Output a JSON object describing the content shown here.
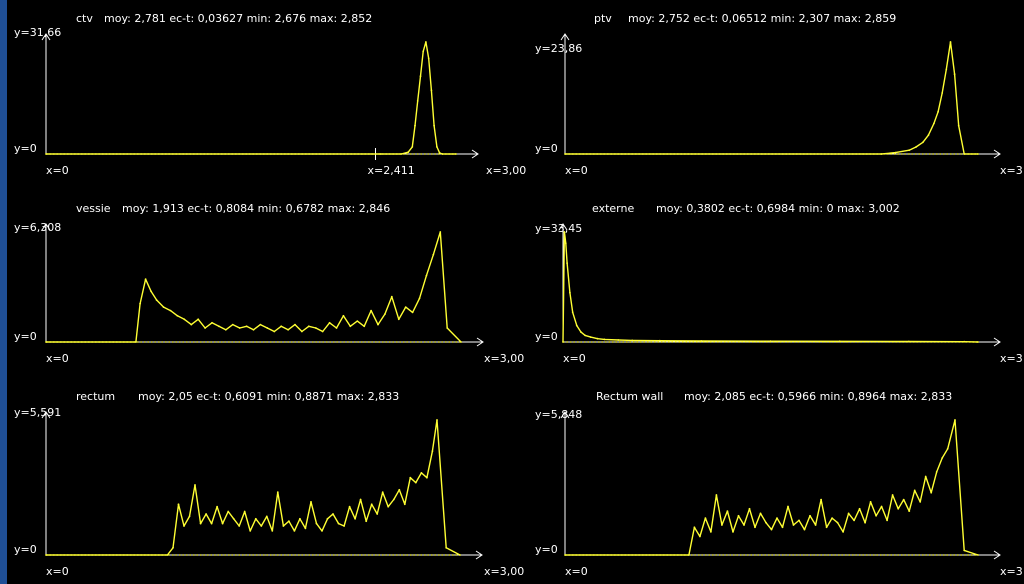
{
  "colors": {
    "background": "#000000",
    "axis": "#ffffff",
    "series": "#ffff33",
    "text": "#ffffff",
    "left_strip": "#1f4f96"
  },
  "chart_data": [
    {
      "type": "line",
      "name": "ctv",
      "title": "ctv",
      "stats": "moy: 2,781 ec-t: 0,03627 min: 2,676 max: 2,852",
      "y_max_label": "y=31,66",
      "y_min_label": "y=0",
      "x_min_label": "x=0",
      "x_max_label": "x=3,00",
      "extra_x_label": "x=2,411",
      "extra_x_value": 2.411,
      "xlim": [
        0,
        3.0
      ],
      "ylim": [
        0,
        31.66
      ],
      "grid": false,
      "x": [
        0,
        2.45,
        2.6,
        2.65,
        2.68,
        2.7,
        2.72,
        2.74,
        2.76,
        2.78,
        2.8,
        2.82,
        2.84,
        2.86,
        2.88,
        2.9,
        3.0
      ],
      "y": [
        0,
        0,
        0,
        0.5,
        2,
        8,
        15,
        22,
        29,
        31.66,
        27,
        18,
        8,
        2,
        0.3,
        0,
        0
      ]
    },
    {
      "type": "line",
      "name": "ptv",
      "title": "ptv",
      "stats": "moy: 2,752 ec-t: 0,06512 min: 2,307 max: 2,859",
      "y_max_label": "y=23,86",
      "y_min_label": "y=0",
      "x_min_label": "x=0",
      "x_max_label": "x=3",
      "xlim": [
        0,
        3.0
      ],
      "ylim": [
        0,
        23.86
      ],
      "grid": false,
      "x": [
        0,
        2.3,
        2.4,
        2.5,
        2.55,
        2.6,
        2.64,
        2.68,
        2.71,
        2.74,
        2.77,
        2.8,
        2.83,
        2.86,
        2.9,
        3.0
      ],
      "y": [
        0,
        0,
        0.3,
        0.8,
        1.5,
        2.5,
        4,
        6.5,
        9,
        13,
        18,
        23.86,
        17,
        6,
        0,
        0
      ]
    },
    {
      "type": "line",
      "name": "vessie",
      "title": "vessie",
      "stats": "moy: 1,913 ec-t: 0,8084 min: 0,6782 max: 2,846",
      "y_max_label": "y=6,308",
      "y_min_label": "y=0",
      "x_min_label": "x=0",
      "x_max_label": "x=3,00",
      "xlim": [
        0,
        3.0
      ],
      "ylim": [
        0,
        6.308
      ],
      "grid": false,
      "x": [
        0,
        0.65,
        0.68,
        0.72,
        0.76,
        0.8,
        0.85,
        0.9,
        0.95,
        1.0,
        1.05,
        1.1,
        1.15,
        1.2,
        1.25,
        1.3,
        1.35,
        1.4,
        1.45,
        1.5,
        1.55,
        1.6,
        1.65,
        1.7,
        1.75,
        1.8,
        1.85,
        1.9,
        1.95,
        2.0,
        2.05,
        2.1,
        2.15,
        2.2,
        2.25,
        2.3,
        2.35,
        2.4,
        2.45,
        2.5,
        2.55,
        2.6,
        2.65,
        2.7,
        2.75,
        2.8,
        2.85,
        2.9,
        3.0
      ],
      "y": [
        0,
        0,
        2.2,
        3.6,
        2.9,
        2.4,
        2.0,
        1.8,
        1.5,
        1.3,
        1.0,
        1.3,
        0.8,
        1.1,
        0.9,
        0.7,
        1.0,
        0.8,
        0.9,
        0.7,
        1.0,
        0.8,
        0.6,
        0.9,
        0.7,
        1.0,
        0.6,
        0.9,
        0.8,
        0.6,
        1.1,
        0.8,
        1.5,
        0.9,
        1.2,
        0.9,
        1.8,
        1.0,
        1.6,
        2.6,
        1.3,
        2.0,
        1.7,
        2.5,
        3.8,
        5.0,
        6.308,
        0.8,
        0
      ]
    },
    {
      "type": "line",
      "name": "externe",
      "title": "externe",
      "stats": "moy: 0,3802 ec-t: 0,6984 min: 0 max: 3,002",
      "y_max_label": "y=33,45",
      "y_min_label": "y=0",
      "x_min_label": "x=0",
      "x_max_label": "x=3",
      "xlim": [
        0,
        3.0
      ],
      "ylim": [
        0,
        33.45
      ],
      "grid": false,
      "x": [
        0,
        0.01,
        0.02,
        0.03,
        0.05,
        0.07,
        0.1,
        0.13,
        0.16,
        0.2,
        0.25,
        0.3,
        0.4,
        0.5,
        0.7,
        1.0,
        1.5,
        2.0,
        2.5,
        2.9,
        3.0
      ],
      "y": [
        0,
        33.45,
        30,
        24,
        15,
        9,
        5,
        3,
        2,
        1.5,
        1,
        0.8,
        0.6,
        0.5,
        0.4,
        0.3,
        0.25,
        0.2,
        0.15,
        0.1,
        0
      ]
    },
    {
      "type": "line",
      "name": "rectum",
      "title": "rectum",
      "stats": "moy: 2,05 ec-t: 0,6091 min: 0,8871 max: 2,833",
      "y_max_label": "y=5,591",
      "y_min_label": "y=0",
      "x_min_label": "x=0",
      "x_max_label": "x=3,00",
      "xlim": [
        0,
        3.0
      ],
      "ylim": [
        0,
        5.591
      ],
      "grid": false,
      "x": [
        0,
        0.88,
        0.92,
        0.96,
        1.0,
        1.04,
        1.08,
        1.12,
        1.16,
        1.2,
        1.24,
        1.28,
        1.32,
        1.36,
        1.4,
        1.44,
        1.48,
        1.52,
        1.56,
        1.6,
        1.64,
        1.68,
        1.72,
        1.76,
        1.8,
        1.84,
        1.88,
        1.92,
        1.96,
        2.0,
        2.04,
        2.08,
        2.12,
        2.16,
        2.2,
        2.24,
        2.28,
        2.32,
        2.36,
        2.4,
        2.44,
        2.48,
        2.52,
        2.56,
        2.6,
        2.64,
        2.68,
        2.72,
        2.76,
        2.8,
        2.833,
        2.9,
        3.0
      ],
      "y": [
        0,
        0,
        0.3,
        2.1,
        1.2,
        1.6,
        2.9,
        1.3,
        1.7,
        1.3,
        2.0,
        1.3,
        1.8,
        1.5,
        1.2,
        1.8,
        1.0,
        1.5,
        1.2,
        1.6,
        1.0,
        2.6,
        1.2,
        1.4,
        1.0,
        1.5,
        1.1,
        2.2,
        1.3,
        1.0,
        1.5,
        1.7,
        1.3,
        1.2,
        2.0,
        1.5,
        2.3,
        1.4,
        2.1,
        1.7,
        2.6,
        2.0,
        2.3,
        2.7,
        2.1,
        3.2,
        3.0,
        3.4,
        3.2,
        4.3,
        5.591,
        0.3,
        0
      ]
    },
    {
      "type": "line",
      "name": "Rectum wall",
      "title": "Rectum wall",
      "stats": "moy: 2,085 ec-t: 0,5966 min: 0,8964 max: 2,833",
      "y_max_label": "y=5,848",
      "y_min_label": "y=0",
      "x_min_label": "x=0",
      "x_max_label": "x=3",
      "xlim": [
        0,
        3.0
      ],
      "ylim": [
        0,
        5.848
      ],
      "grid": false,
      "x": [
        0,
        0.9,
        0.94,
        0.98,
        1.02,
        1.06,
        1.1,
        1.14,
        1.18,
        1.22,
        1.26,
        1.3,
        1.34,
        1.38,
        1.42,
        1.46,
        1.5,
        1.54,
        1.58,
        1.62,
        1.66,
        1.7,
        1.74,
        1.78,
        1.82,
        1.86,
        1.9,
        1.94,
        1.98,
        2.02,
        2.06,
        2.1,
        2.14,
        2.18,
        2.22,
        2.26,
        2.3,
        2.34,
        2.38,
        2.42,
        2.46,
        2.5,
        2.54,
        2.58,
        2.62,
        2.66,
        2.7,
        2.74,
        2.78,
        2.833,
        2.9,
        3.0
      ],
      "y": [
        0,
        0,
        1.2,
        0.8,
        1.6,
        1.0,
        2.6,
        1.3,
        1.9,
        1.0,
        1.7,
        1.3,
        2.0,
        1.2,
        1.8,
        1.4,
        1.1,
        1.6,
        1.2,
        2.1,
        1.3,
        1.5,
        1.1,
        1.7,
        1.3,
        2.4,
        1.2,
        1.6,
        1.4,
        1.0,
        1.8,
        1.5,
        2.0,
        1.4,
        2.3,
        1.7,
        2.1,
        1.5,
        2.6,
        2.0,
        2.4,
        1.9,
        2.8,
        2.3,
        3.4,
        2.7,
        3.6,
        4.2,
        4.6,
        5.848,
        0.2,
        0
      ]
    }
  ]
}
